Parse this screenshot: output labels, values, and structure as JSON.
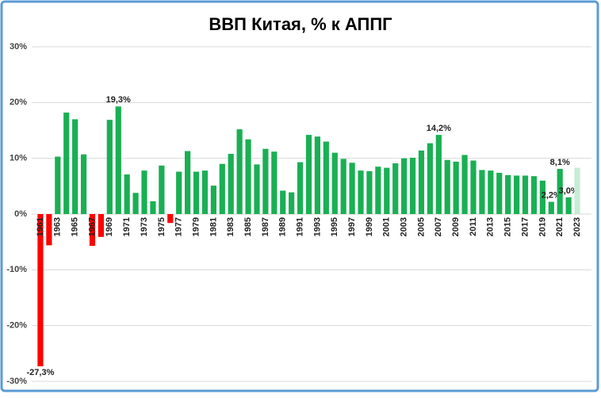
{
  "chart_data": {
    "type": "bar",
    "title": "ВВП Китая, % к АППГ",
    "categories": [
      "1961",
      null,
      "1963",
      null,
      "1965",
      null,
      "1967",
      null,
      "1969",
      null,
      "1971",
      null,
      "1973",
      null,
      "1975",
      null,
      "1977",
      null,
      "1979",
      null,
      "1981",
      null,
      "1983",
      null,
      "1985",
      null,
      "1987",
      null,
      "1989",
      null,
      "1991",
      null,
      "1993",
      null,
      "1995",
      null,
      "1997",
      null,
      "1999",
      null,
      "2001",
      null,
      "2003",
      null,
      "2005",
      null,
      "2007",
      null,
      "2009",
      null,
      "2011",
      null,
      "2013",
      null,
      "2015",
      null,
      "2017",
      null,
      "2019",
      null,
      "2021",
      null,
      "2023"
    ],
    "values": [
      -27.3,
      -5.6,
      10.3,
      18.2,
      17.0,
      10.7,
      -5.7,
      -4.1,
      16.9,
      19.3,
      7.1,
      3.8,
      7.8,
      2.3,
      8.7,
      -1.6,
      7.6,
      11.3,
      7.6,
      7.8,
      5.1,
      9.0,
      10.8,
      15.2,
      13.4,
      8.9,
      11.7,
      11.2,
      4.2,
      3.9,
      9.3,
      14.2,
      13.9,
      13.0,
      11.0,
      9.9,
      9.2,
      7.8,
      7.7,
      8.5,
      8.3,
      9.1,
      10.0,
      10.1,
      11.4,
      12.7,
      14.2,
      9.7,
      9.4,
      10.6,
      9.6,
      7.9,
      7.8,
      7.4,
      7.0,
      6.9,
      6.9,
      6.8,
      6.0,
      2.2,
      8.1,
      3.0,
      8.3
    ],
    "value_labels": [
      "-27,3%",
      null,
      null,
      null,
      null,
      null,
      null,
      null,
      null,
      "19,3%",
      null,
      null,
      null,
      null,
      null,
      null,
      null,
      null,
      null,
      null,
      null,
      null,
      null,
      null,
      null,
      null,
      null,
      null,
      null,
      null,
      null,
      null,
      null,
      null,
      null,
      null,
      null,
      null,
      null,
      null,
      null,
      null,
      null,
      null,
      null,
      null,
      "14,2%",
      null,
      null,
      null,
      null,
      null,
      null,
      null,
      null,
      null,
      null,
      null,
      null,
      "2,2%",
      "8,1%",
      "3,0%",
      null
    ],
    "colors": [
      "#ff0000",
      "#ff0000",
      "#1aaf54",
      "#1aaf54",
      "#1aaf54",
      "#1aaf54",
      "#ff0000",
      "#ff0000",
      "#1aaf54",
      "#1aaf54",
      "#1aaf54",
      "#1aaf54",
      "#1aaf54",
      "#1aaf54",
      "#1aaf54",
      "#ff0000",
      "#1aaf54",
      "#1aaf54",
      "#1aaf54",
      "#1aaf54",
      "#1aaf54",
      "#1aaf54",
      "#1aaf54",
      "#1aaf54",
      "#1aaf54",
      "#1aaf54",
      "#1aaf54",
      "#1aaf54",
      "#1aaf54",
      "#1aaf54",
      "#1aaf54",
      "#1aaf54",
      "#1aaf54",
      "#1aaf54",
      "#1aaf54",
      "#1aaf54",
      "#1aaf54",
      "#1aaf54",
      "#1aaf54",
      "#1aaf54",
      "#1aaf54",
      "#1aaf54",
      "#1aaf54",
      "#1aaf54",
      "#1aaf54",
      "#1aaf54",
      "#1aaf54",
      "#1aaf54",
      "#1aaf54",
      "#1aaf54",
      "#1aaf54",
      "#1aaf54",
      "#1aaf54",
      "#1aaf54",
      "#1aaf54",
      "#1aaf54",
      "#1aaf54",
      "#1aaf54",
      "#1aaf54",
      "#1aaf54",
      "#1aaf54",
      "#1aaf54",
      "#c6ecd4"
    ],
    "ylim": [
      -30,
      30
    ],
    "yticks": [
      {
        "value": -30,
        "label": "-30%"
      },
      {
        "value": -20,
        "label": "-20%"
      },
      {
        "value": -10,
        "label": "-10%"
      },
      {
        "value": 0,
        "label": "0%"
      },
      {
        "value": 10,
        "label": "10%"
      },
      {
        "value": 20,
        "label": "20%"
      },
      {
        "value": 30,
        "label": "30%"
      }
    ],
    "grid": true
  }
}
